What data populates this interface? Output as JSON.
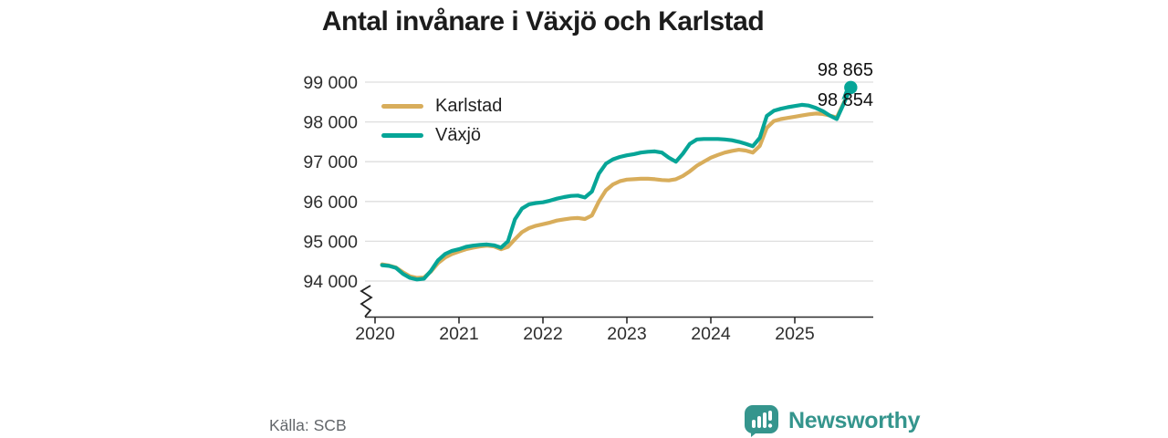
{
  "title": "Antal invånare i Växjö och Karlstad",
  "source": "Källa: SCB",
  "branding": {
    "logo_text": "Newsworthy",
    "logo_color": "#35958d"
  },
  "chart_data": {
    "type": "line",
    "title": "Antal invånare i Växjö och Karlstad",
    "xlabel": "",
    "ylabel": "",
    "frequency": "monthly",
    "start_month": "2020-01",
    "end_month": "2025-08",
    "ylim": [
      94000,
      99000
    ],
    "y_axis_break": true,
    "grid": "horizontal",
    "legend_position": "top-left",
    "colors": {
      "grid": "#dedede",
      "axis": "#2b2b2b",
      "text": "#2e2e2e"
    },
    "y_ticks": [
      {
        "value": 99000,
        "label": "99 000"
      },
      {
        "value": 98000,
        "label": "98 000"
      },
      {
        "value": 97000,
        "label": "97 000"
      },
      {
        "value": 96000,
        "label": "96 000"
      },
      {
        "value": 95000,
        "label": "95 000"
      },
      {
        "value": 94000,
        "label": "94 000"
      }
    ],
    "x_ticks": [
      {
        "value": 2020,
        "label": "2020"
      },
      {
        "value": 2021,
        "label": "2021"
      },
      {
        "value": 2022,
        "label": "2022"
      },
      {
        "value": 2023,
        "label": "2023"
      },
      {
        "value": 2024,
        "label": "2024"
      },
      {
        "value": 2025,
        "label": "2025"
      }
    ],
    "series": [
      {
        "name": "Karlstad",
        "color": "#d8ad5b",
        "end_marker": false,
        "values": [
          94420,
          94390,
          94340,
          94220,
          94120,
          94080,
          94090,
          94240,
          94450,
          94590,
          94680,
          94740,
          94800,
          94840,
          94870,
          94890,
          94870,
          94800,
          94860,
          95050,
          95230,
          95330,
          95390,
          95430,
          95470,
          95520,
          95550,
          95575,
          95585,
          95560,
          95650,
          96000,
          96280,
          96430,
          96510,
          96550,
          96560,
          96570,
          96570,
          96560,
          96540,
          96530,
          96560,
          96640,
          96760,
          96900,
          97000,
          97100,
          97170,
          97230,
          97270,
          97300,
          97280,
          97230,
          97400,
          97850,
          98020,
          98070,
          98100,
          98130,
          98160,
          98190,
          98210,
          98200,
          98160,
          98110,
          98480,
          98854
        ]
      },
      {
        "name": "Växjö",
        "color": "#06a597",
        "end_marker": true,
        "values": [
          94400,
          94380,
          94330,
          94180,
          94080,
          94040,
          94060,
          94260,
          94520,
          94680,
          94760,
          94800,
          94860,
          94890,
          94910,
          94920,
          94900,
          94840,
          95000,
          95550,
          95820,
          95930,
          95960,
          95980,
          96020,
          96070,
          96110,
          96140,
          96150,
          96100,
          96250,
          96700,
          96950,
          97060,
          97120,
          97160,
          97190,
          97230,
          97250,
          97260,
          97230,
          97100,
          97000,
          97200,
          97450,
          97560,
          97570,
          97570,
          97570,
          97560,
          97540,
          97500,
          97450,
          97390,
          97600,
          98150,
          98280,
          98330,
          98370,
          98400,
          98430,
          98410,
          98350,
          98270,
          98160,
          98070,
          98460,
          98865
        ]
      }
    ],
    "end_labels": [
      {
        "series": "Växjö",
        "label": "98 865"
      },
      {
        "series": "Karlstad",
        "label": "98 854"
      }
    ]
  }
}
